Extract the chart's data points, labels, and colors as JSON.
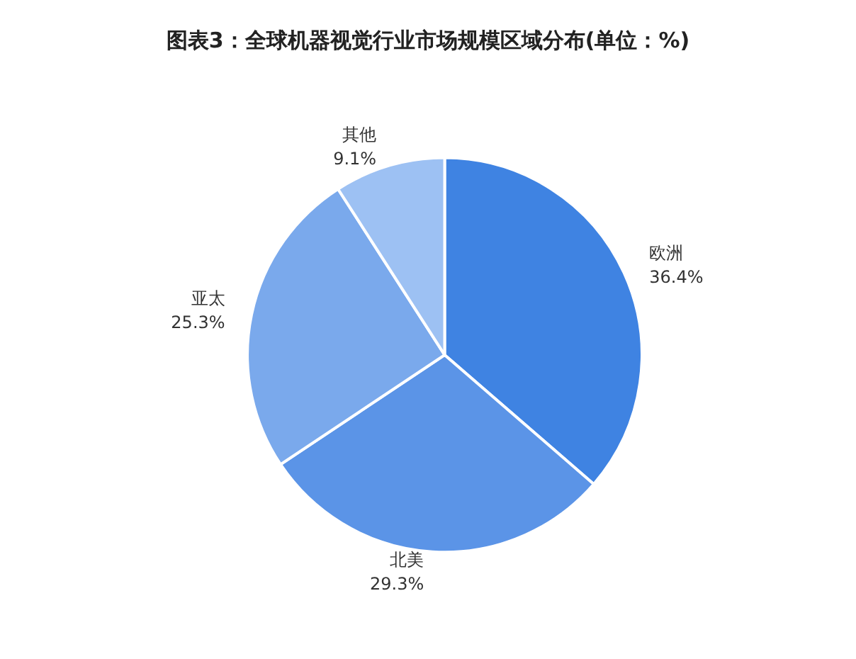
{
  "chart_data": {
    "type": "pie",
    "title": "图表3：全球机器视觉行业市场规模区域分布(单位：%)",
    "categories": [
      "欧洲",
      "北美",
      "亚太",
      "其他"
    ],
    "values": [
      36.4,
      29.3,
      25.3,
      9.1
    ],
    "value_labels": [
      "36.4%",
      "29.3%",
      "25.3%",
      "9.1%"
    ],
    "colors": [
      "#3f83e2",
      "#5b94e7",
      "#7aa9ec",
      "#9dc1f3"
    ],
    "legend": false
  }
}
